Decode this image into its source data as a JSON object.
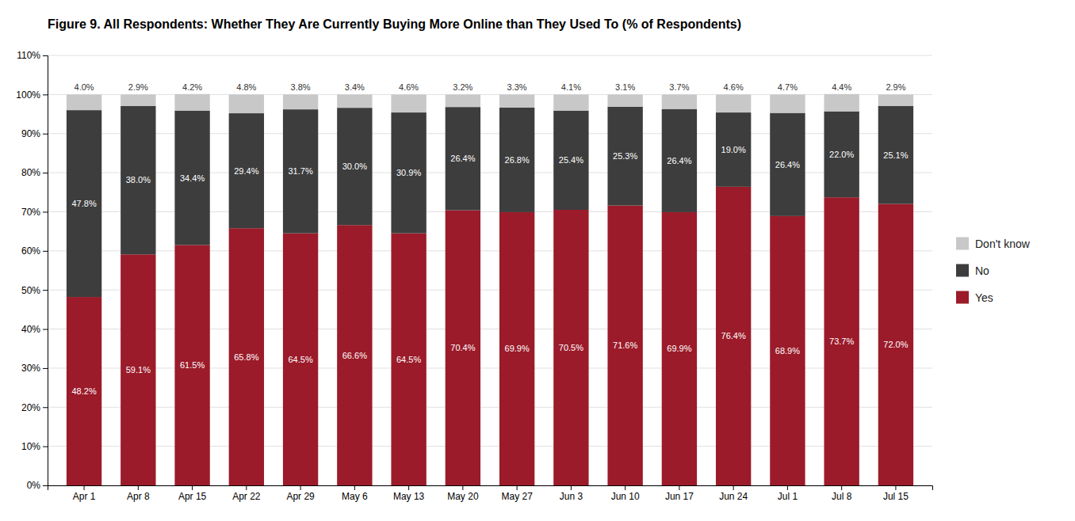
{
  "chart_data": {
    "type": "bar",
    "stacked": true,
    "data_labels": true,
    "grid": true,
    "legend": "right",
    "title": "Figure 9. All Respondents: Whether They Are Currently Buying More Online than They Used To (% of Respondents)",
    "categories": [
      "Apr 1",
      "Apr 8",
      "Apr 15",
      "Apr 22",
      "Apr 29",
      "May 6",
      "May 13",
      "May 20",
      "May 27",
      "Jun 3",
      "Jun 10",
      "Jun 17",
      "Jun 24",
      "Jul 1",
      "Jul 8",
      "Jul 15"
    ],
    "series": [
      {
        "name": "Yes",
        "color": "#9B1B2A",
        "values": [
          48.2,
          59.1,
          61.5,
          65.8,
          64.5,
          66.6,
          64.5,
          70.4,
          69.9,
          70.5,
          71.6,
          69.9,
          76.4,
          68.9,
          73.7,
          72.0
        ],
        "value_labels": [
          "48.2%",
          "59.1%",
          "61.5%",
          "65.8%",
          "64.5%",
          "66.6%",
          "64.5%",
          "70.4%",
          "69.9%",
          "70.5%",
          "71.6%",
          "69.9%",
          "76.4%",
          "68.9%",
          "73.7%",
          "72.0%"
        ]
      },
      {
        "name": "No",
        "color": "#3D3D3D",
        "values": [
          47.8,
          38.0,
          34.4,
          29.4,
          31.7,
          30.0,
          30.9,
          26.4,
          26.8,
          25.4,
          25.3,
          26.4,
          19.0,
          26.4,
          22.0,
          25.1
        ],
        "value_labels": [
          "47.8%",
          "38.0%",
          "34.4%",
          "29.4%",
          "31.7%",
          "30.0%",
          "30.9%",
          "26.4%",
          "26.8%",
          "25.4%",
          "25.3%",
          "26.4%",
          "19.0%",
          "26.4%",
          "22.0%",
          "25.1%"
        ]
      },
      {
        "name": "Don't know",
        "color": "#C8C8C8",
        "values": [
          4.0,
          2.9,
          4.2,
          4.8,
          3.8,
          3.4,
          4.6,
          3.2,
          3.3,
          4.1,
          3.1,
          3.7,
          4.6,
          4.7,
          4.4,
          2.9
        ],
        "value_labels": [
          "4.0%",
          "2.9%",
          "4.2%",
          "4.8%",
          "3.8%",
          "3.4%",
          "4.6%",
          "3.2%",
          "3.3%",
          "4.1%",
          "3.1%",
          "3.7%",
          "4.6%",
          "4.7%",
          "4.4%",
          "2.9%"
        ]
      }
    ],
    "ylim": [
      0,
      110
    ],
    "yticks": [
      {
        "value": 0,
        "label": "0%"
      },
      {
        "value": 10,
        "label": "10%"
      },
      {
        "value": 20,
        "label": "20%"
      },
      {
        "value": 30,
        "label": "30%"
      },
      {
        "value": 40,
        "label": "40%"
      },
      {
        "value": 50,
        "label": "50%"
      },
      {
        "value": 60,
        "label": "60%"
      },
      {
        "value": 70,
        "label": "70%"
      },
      {
        "value": 80,
        "label": "80%"
      },
      {
        "value": 90,
        "label": "90%"
      },
      {
        "value": 100,
        "label": "100%"
      },
      {
        "value": 110,
        "label": "110%"
      }
    ]
  }
}
